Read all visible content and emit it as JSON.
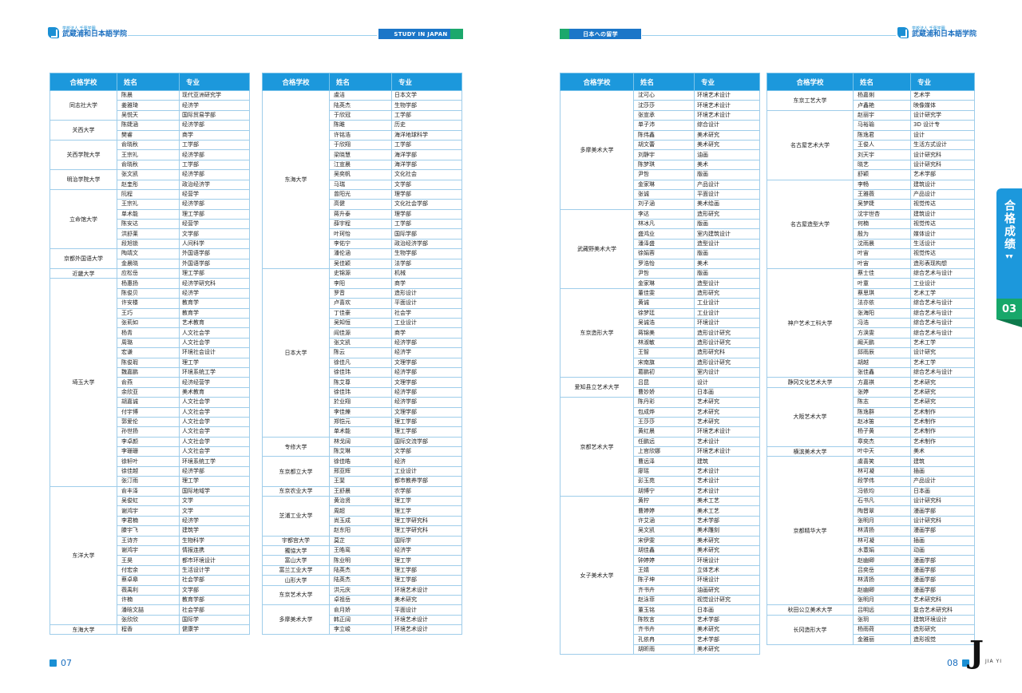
{
  "header_left": {
    "logo_small": "学校法人 千葉学園",
    "logo_big": "武蔵浦和日本語学院",
    "tag": "STUDY IN JAPAN"
  },
  "header_right": {
    "logo_small": "学校法人 千葉学園",
    "logo_big": "武蔵浦和日本語学院",
    "tag": "日本への留学"
  },
  "columns": {
    "school": "合格学校",
    "name": "姓名",
    "major": "专业"
  },
  "footer": {
    "left_page": "07",
    "right_page": "08",
    "brand_sub": "JIA YI"
  },
  "side_tab": {
    "label": "合格成绩",
    "arrows": "▼▼",
    "number": "03"
  },
  "colors": {
    "header": "#1c98dc",
    "accent_blue": "#1b76c8",
    "accent_green": "#1ca86c",
    "border": "#9fcdea"
  },
  "tables": [
    [
      {
        "school": "同志社大学",
        "rows": [
          [
            "陈晨",
            "现代亚洲研究学"
          ],
          [
            "姜雅琦",
            "经济学"
          ],
          [
            "吴悦天",
            "国际贸易学部"
          ]
        ]
      },
      {
        "school": "关西大学",
        "rows": [
          [
            "陈婕涵",
            "经济学部"
          ],
          [
            "樊睿",
            "商学"
          ]
        ]
      },
      {
        "school": "关西学院大学",
        "rows": [
          [
            "俞晓秋",
            "工学部"
          ],
          [
            "王宗礼",
            "经济学部"
          ],
          [
            "俞晓秋",
            "工学部"
          ]
        ]
      },
      {
        "school": "明治学院大学",
        "rows": [
          [
            "张文凯",
            "经济学部"
          ],
          [
            "赵奎彤",
            "政治经济学"
          ]
        ]
      },
      {
        "school": "立命馆大学",
        "rows": [
          [
            "阮程",
            "经营学"
          ],
          [
            "王宗礼",
            "经济学部"
          ],
          [
            "单术能",
            "理工学部"
          ],
          [
            "陈安达",
            "经营学"
          ],
          [
            "洪舒莱",
            "文学部"
          ],
          [
            "段旭锁",
            "人间科学"
          ]
        ]
      },
      {
        "school": "京都外国语大学",
        "rows": [
          [
            "陶靖文",
            "外国语学部"
          ],
          [
            "金晨晓",
            "外国语学部"
          ]
        ]
      },
      {
        "school": "近畿大学",
        "rows": [
          [
            "应松岳",
            "理工学部"
          ]
        ]
      },
      {
        "school": "埼玉大学",
        "rows": [
          [
            "杨惠扬",
            "经济学研究科"
          ],
          [
            "陈俊贝",
            "经济学"
          ],
          [
            "许安楼",
            "教育学"
          ],
          [
            "王巧",
            "教育学"
          ],
          [
            "张莉如",
            "艺术教育"
          ],
          [
            "杨青",
            "人文社会学"
          ],
          [
            "周璐",
            "人文社会学"
          ],
          [
            "宏谦",
            "环境社会设计"
          ],
          [
            "陈俊瑕",
            "理工学"
          ],
          [
            "魏嘉鹏",
            "环境系统工学"
          ],
          [
            "俞燕",
            "经济经营学"
          ],
          [
            "余欣亚",
            "美术教育"
          ],
          [
            "胡嘉诚",
            "人文社会学"
          ],
          [
            "付宇博",
            "人文社会学"
          ],
          [
            "郭爱伦",
            "人文社会学"
          ],
          [
            "孙世扬",
            "人文社会学"
          ],
          [
            "李卓颜",
            "人文社会学"
          ],
          [
            "李珊珊",
            "人文社会学"
          ],
          [
            "徐轩叶",
            "环境系统工学"
          ],
          [
            "徐佳越",
            "经济学部"
          ],
          [
            "张汀雨",
            "理工学"
          ]
        ]
      },
      {
        "school": "东洋大学",
        "rows": [
          [
            "俞丰泽",
            "国际地域学"
          ],
          [
            "吴俊虹",
            "文学"
          ],
          [
            "谢鸿宇",
            "文学"
          ],
          [
            "李君楠",
            "经济学"
          ],
          [
            "滕宇飞",
            "建筑学"
          ],
          [
            "王诗齐",
            "生物科学"
          ],
          [
            "谢鸿宇",
            "情报连携"
          ],
          [
            "王昊",
            "都市环境设计"
          ],
          [
            "付宏余",
            "生活设计学"
          ],
          [
            "蔡卓皋",
            "社会学部"
          ],
          [
            "薇禹利",
            "文学部"
          ],
          [
            "许楠",
            "教育学部"
          ],
          [
            "潘晗文喆",
            "社会学部"
          ],
          [
            "张欣欣",
            "国际学"
          ]
        ]
      },
      {
        "school": "东海大学",
        "rows": [
          [
            "程香",
            "健康学"
          ]
        ]
      }
    ],
    [
      {
        "school": "东海大学",
        "rows": [
          [
            "虞洁",
            "日本文学"
          ],
          [
            "陆英杰",
            "生物学部"
          ],
          [
            "于欣冠",
            "工学部"
          ],
          [
            "陈雎",
            "历史"
          ],
          [
            "许铭浩",
            "海洋地球科学"
          ],
          [
            "于欣翔",
            "工学部"
          ],
          [
            "梁晓慧",
            "海洋学部"
          ],
          [
            "江宣晨",
            "海洋学部"
          ],
          [
            "吴奕帆",
            "文化社会"
          ],
          [
            "马瑞",
            "文学部"
          ],
          [
            "曾阳光",
            "理学部"
          ],
          [
            "高健",
            "文化社会学部"
          ],
          [
            "蒋升泰",
            "理学部"
          ],
          [
            "薛宇程",
            "工学部"
          ],
          [
            "叶珂怡",
            "国际学部"
          ],
          [
            "李佑宁",
            "政治经济学部"
          ],
          [
            "潘伦涵",
            "生物学部"
          ],
          [
            "吴佳颖",
            "法学部"
          ]
        ]
      },
      {
        "school": "日本大学",
        "rows": [
          [
            "史锦源",
            "机械"
          ],
          [
            "李阳",
            "商学"
          ],
          [
            "罗音",
            "造形设计"
          ],
          [
            "卢喜欢",
            "平面设计"
          ],
          [
            "丁佳豪",
            "社会学"
          ],
          [
            "吴知恒",
            "工业设计"
          ],
          [
            "阎佳源",
            "商学"
          ],
          [
            "张文凯",
            "经济学部"
          ],
          [
            "陈云",
            "经济学"
          ],
          [
            "徐佳凡",
            "文理学部"
          ],
          [
            "徐佳玮",
            "经济学部"
          ],
          [
            "陈艾尊",
            "文理学部"
          ],
          [
            "徐佳玮",
            "经济学部"
          ],
          [
            "於业翔",
            "经济学部"
          ],
          [
            "李佳爍",
            "文理学部"
          ],
          [
            "郑恺元",
            "理工学部"
          ],
          [
            "单术能",
            "理工学部"
          ]
        ]
      },
      {
        "school": "专修大学",
        "rows": [
          [
            "林戈阔",
            "国际交流学部"
          ],
          [
            "陈艾琳",
            "文学部"
          ]
        ]
      },
      {
        "school": "东京都立大学",
        "rows": [
          [
            "徐佳皓",
            "经济"
          ],
          [
            "邢亚辉",
            "工业设计"
          ],
          [
            "王斐",
            "都市教养学部"
          ]
        ]
      },
      {
        "school": "东京农业大学",
        "rows": [
          [
            "王舒晨",
            "农学部"
          ]
        ]
      },
      {
        "school": "芝浦工业大学",
        "rows": [
          [
            "黄治贤",
            "理工学"
          ],
          [
            "周超",
            "理工学"
          ],
          [
            "尚玉成",
            "理工学研究科"
          ],
          [
            "赵东阳",
            "理工学研究科"
          ]
        ]
      },
      {
        "school": "宇都宫大学",
        "rows": [
          [
            "莫芷",
            "国际学"
          ]
        ]
      },
      {
        "school": "獨協大学",
        "rows": [
          [
            "王皓鸾",
            "经济学"
          ]
        ]
      },
      {
        "school": "富山大学",
        "rows": [
          [
            "陈业明",
            "理工学"
          ]
        ]
      },
      {
        "school": "富兰工业大学",
        "rows": [
          [
            "陆英杰",
            "理工学部"
          ]
        ]
      },
      {
        "school": "山形大学",
        "rows": [
          [
            "陆英杰",
            "理工学部"
          ]
        ]
      },
      {
        "school": "东京艺术大学",
        "rows": [
          [
            "洪元庆",
            "环境艺术设计"
          ],
          [
            "卓祖岳",
            "美术研究"
          ]
        ]
      },
      {
        "school": "多摩美术大学",
        "rows": [
          [
            "俞月娇",
            "平面设计"
          ],
          [
            "韩正阔",
            "环境艺术设计"
          ],
          [
            "李立峻",
            "环境艺术设计"
          ]
        ]
      }
    ],
    [
      {
        "school": "多摩美术大学",
        "rows": [
          [
            "沈可心",
            "环境艺术设计"
          ],
          [
            "沈莎莎",
            "环境艺术设计"
          ],
          [
            "张宣承",
            "环境艺术设计"
          ],
          [
            "单子沛",
            "综合设计"
          ],
          [
            "陈伟鑫",
            "美术研究"
          ],
          [
            "胡文蕾",
            "美术研究"
          ],
          [
            "刘静宇",
            "油画"
          ],
          [
            "陈梦琪",
            "美术"
          ],
          [
            "尹哲",
            "版画"
          ],
          [
            "金家琳",
            "产品设计"
          ],
          [
            "张诚",
            "平面设计"
          ],
          [
            "刘子涵",
            "美术绘画"
          ]
        ]
      },
      {
        "school": "武藏野美术大学",
        "rows": [
          [
            "李达",
            "造形研究"
          ],
          [
            "林冰凡",
            "版画"
          ],
          [
            "盛鸿业",
            "室内建筑设计"
          ],
          [
            "潘泽盛",
            "造型设计"
          ],
          [
            "徐娟蓉",
            "版画"
          ],
          [
            "罗浩怡",
            "美术"
          ],
          [
            "尹哲",
            "版画"
          ],
          [
            "金家琳",
            "造型设计"
          ]
        ]
      },
      {
        "school": "东京造形大学",
        "rows": [
          [
            "董佳雯",
            "造形研究"
          ],
          [
            "黄诚",
            "工业设计"
          ],
          [
            "徐梦廷",
            "工业设计"
          ],
          [
            "吴诚浩",
            "环境设计"
          ],
          [
            "蒋锦美",
            "造形设计研究"
          ],
          [
            "林淑敏",
            "造形设计研究"
          ],
          [
            "王智",
            "造形研究科"
          ],
          [
            "宋南旗",
            "造形设计研究"
          ],
          [
            "葛鹏初",
            "室内设计"
          ]
        ]
      },
      {
        "school": "爱知县立艺术大学",
        "rows": [
          [
            "吕昆",
            "设计"
          ],
          [
            "曹妙娇",
            "日本画"
          ]
        ]
      },
      {
        "school": "京都艺术大学",
        "rows": [
          [
            "陈丹彩",
            "艺术研究"
          ],
          [
            "包成烨",
            "艺术研究"
          ],
          [
            "王莎莎",
            "艺术研究"
          ],
          [
            "黄红晨",
            "环境艺术设计"
          ],
          [
            "任鹏远",
            "艺术设计"
          ],
          [
            "上官欣娜",
            "环境艺术设计"
          ],
          [
            "曹远泽",
            "建筑"
          ],
          [
            "廖瑶",
            "艺术设计"
          ],
          [
            "彭玉苑",
            "艺术设计"
          ],
          [
            "胡博宁",
            "艺术设计"
          ]
        ]
      },
      {
        "school": "女子美术大学",
        "rows": [
          [
            "黄柠",
            "美术工艺"
          ],
          [
            "曹婷婷",
            "美术工艺"
          ],
          [
            "许艾涵",
            "艺术学部"
          ],
          [
            "吴文凯",
            "美术雕刻"
          ],
          [
            "宋伊雯",
            "美术研究"
          ],
          [
            "胡佳鑫",
            "美术研究"
          ],
          [
            "钟婷婷",
            "环境设计"
          ],
          [
            "王婧",
            "立体艺术"
          ],
          [
            "陈子坤",
            "环境设计"
          ],
          [
            "齐书卉",
            "油画研究"
          ],
          [
            "赵泳菲",
            "视觉设计研究"
          ],
          [
            "董玉铭",
            "日本画"
          ],
          [
            "陈牧言",
            "艺术学部"
          ],
          [
            "齐书卉",
            "美术研究"
          ],
          [
            "孔依冉",
            "艺术学部"
          ],
          [
            "胡昕雨",
            "美术研究"
          ]
        ]
      }
    ],
    [
      {
        "school": "东京工艺大学",
        "rows": [
          [
            "杨嘉俐",
            "艺术学"
          ],
          [
            "卢鑫艳",
            "映像媒体"
          ]
        ]
      },
      {
        "school": "名古屋艺术大学",
        "rows": [
          [
            "赵丽宇",
            "设计研究学"
          ],
          [
            "马裕瑜",
            "3D 设计专"
          ],
          [
            "陈逸君",
            "设计"
          ],
          [
            "王俊人",
            "生活方式设计"
          ],
          [
            "刘天宇",
            "设计研究科"
          ],
          [
            "晓艺",
            "设计研究科"
          ],
          [
            "舒颖",
            "艺术学部"
          ]
        ]
      },
      {
        "school": "名古屋造型大学",
        "rows": [
          [
            "李畅",
            "建筑设计"
          ],
          [
            "王雅薇",
            "产品设计"
          ],
          [
            "吴梦婕",
            "视觉传达"
          ],
          [
            "沈宇世杏",
            "建筑设计"
          ],
          [
            "何楠",
            "视觉传达"
          ],
          [
            "殷为",
            "媒体设计"
          ],
          [
            "沈雨晨",
            "生活设计"
          ],
          [
            "叶宙",
            "视觉传达"
          ],
          [
            "叶宙",
            "造形表现构想"
          ]
        ]
      },
      {
        "school": "神户艺术工科大学",
        "rows": [
          [
            "蔡士佳",
            "综合艺术与设计"
          ],
          [
            "叶童",
            "工业设计"
          ],
          [
            "蔡思琪",
            "艺术工学"
          ],
          [
            "法亦依",
            "综合艺术与设计"
          ],
          [
            "张海阳",
            "综合艺术与设计"
          ],
          [
            "冯浩",
            "综合艺术与设计"
          ],
          [
            "方涣雯",
            "综合艺术与设计"
          ],
          [
            "阚天鹏",
            "艺术工学"
          ],
          [
            "邱雨辰",
            "设计研究"
          ],
          [
            "胡越",
            "艺术工学"
          ],
          [
            "张佳鑫",
            "综合艺术与设计"
          ]
        ]
      },
      {
        "school": "静冈文化艺术大学",
        "rows": [
          [
            "方嘉祺",
            "艺术研究"
          ]
        ]
      },
      {
        "school": "大阪艺术大学",
        "rows": [
          [
            "张婷",
            "艺术研究"
          ],
          [
            "陈志",
            "艺术研究"
          ],
          [
            "陈逸群",
            "艺术制作"
          ],
          [
            "赵冰笛",
            "艺术制作"
          ],
          [
            "杨子黄",
            "艺术制作"
          ],
          [
            "章奕杰",
            "艺术制作"
          ]
        ]
      },
      {
        "school": "横滨美术大学",
        "rows": [
          [
            "叶中天",
            "美术"
          ]
        ]
      },
      {
        "school": "京都精华大学",
        "rows": [
          [
            "虞喜笑",
            "建筑"
          ],
          [
            "林可凝",
            "插画"
          ],
          [
            "段学伟",
            "产品设计"
          ],
          [
            "冯依均",
            "日本画"
          ],
          [
            "石书凡",
            "设计研究科"
          ],
          [
            "陶晋翠",
            "漫画学部"
          ],
          [
            "张明月",
            "设计研究科"
          ],
          [
            "林清扬",
            "漫画学部"
          ],
          [
            "林可凝",
            "插画"
          ],
          [
            "水薏娟",
            "动画"
          ],
          [
            "赵幽卿",
            "漫画学部"
          ],
          [
            "吕奕岳",
            "漫画学部"
          ],
          [
            "林清扬",
            "漫画学部"
          ],
          [
            "赵幽卿",
            "漫画学部"
          ],
          [
            "张明月",
            "艺术研究科"
          ]
        ]
      },
      {
        "school": "秋田公立美术大学",
        "rows": [
          [
            "吕明远",
            "复合艺术研究科"
          ]
        ]
      },
      {
        "school": "长冈造形大学",
        "rows": [
          [
            "张玥",
            "建筑环境设计"
          ],
          [
            "杨雨荷",
            "造形研究"
          ],
          [
            "金雅丽",
            "造形视觉"
          ]
        ]
      }
    ]
  ]
}
